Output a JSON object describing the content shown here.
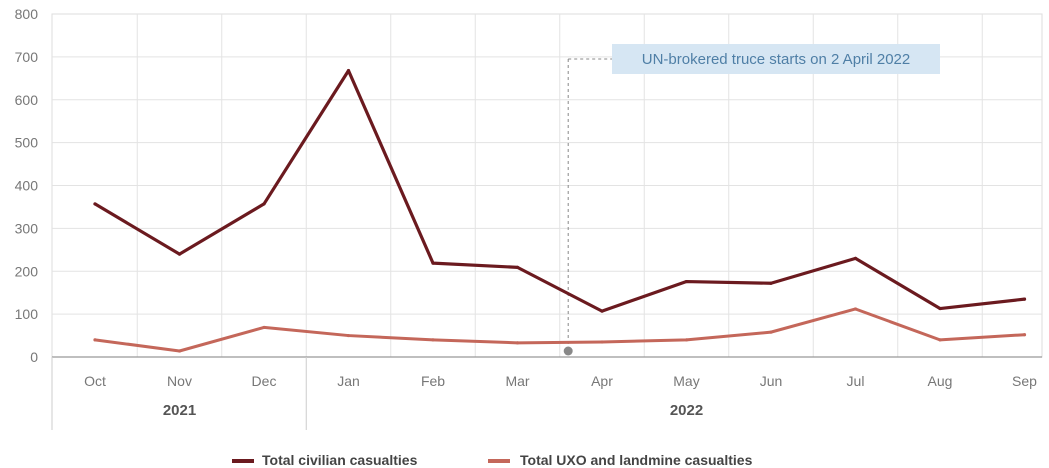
{
  "chart_data": {
    "type": "line",
    "categories": [
      "Oct",
      "Nov",
      "Dec",
      "Jan",
      "Feb",
      "Mar",
      "Apr",
      "May",
      "Jun",
      "Jul",
      "Aug",
      "Sep"
    ],
    "year_groups": [
      {
        "label": "2021",
        "from": 0,
        "to": 2
      },
      {
        "label": "2022",
        "from": 3,
        "to": 11
      }
    ],
    "yticks": [
      "0",
      "100",
      "200",
      "300",
      "400",
      "500",
      "600",
      "700",
      "800"
    ],
    "ylim": [
      0,
      800
    ],
    "grid": true,
    "legend_position": "bottom",
    "series": [
      {
        "name": "Total civilian casualties",
        "color": "#6b1a1f",
        "values": [
          357,
          240,
          357,
          668,
          219,
          209,
          107,
          176,
          172,
          230,
          113,
          135
        ]
      },
      {
        "name": "Total UXO and landmine casualties",
        "color": "#c4675a",
        "values": [
          40,
          14,
          69,
          50,
          40,
          33,
          35,
          40,
          58,
          112,
          40,
          52
        ]
      }
    ],
    "annotation": {
      "text": "UN-brokered truce starts on 2 April 2022",
      "position": 5.6
    }
  }
}
